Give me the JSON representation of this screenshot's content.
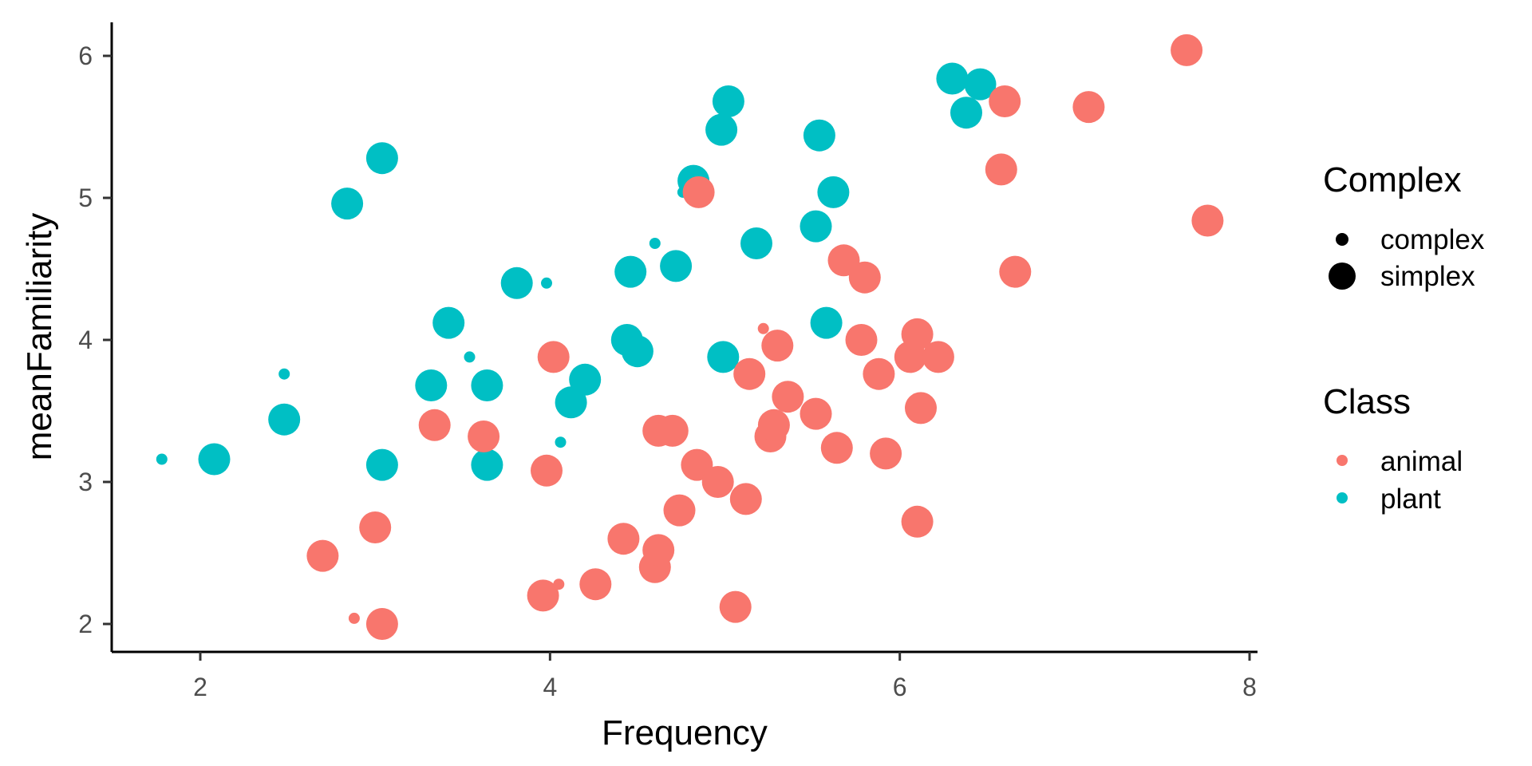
{
  "chart_data": {
    "type": "scatter",
    "xlabel": "Frequency",
    "ylabel": "meanFamiliarity",
    "xlim": [
      1.5,
      8.1
    ],
    "ylim": [
      1.8,
      6.25
    ],
    "x_ticks": [
      "2",
      "4",
      "6",
      "8"
    ],
    "y_ticks": [
      "2",
      "3",
      "4",
      "5",
      "6"
    ],
    "grid": false,
    "legend": {
      "position": "right",
      "size_title": "Complex",
      "size_items": [
        "complex",
        "simplex"
      ],
      "color_title": "Class",
      "color_items": [
        "animal",
        "plant"
      ]
    },
    "colors": {
      "animal": "#F8766D",
      "plant": "#00BFC4"
    },
    "series": [
      {
        "name": "plant",
        "points": [
          {
            "x": 1.78,
            "y": 3.16,
            "size": "complex"
          },
          {
            "x": 2.08,
            "y": 3.16,
            "size": "simplex"
          },
          {
            "x": 2.48,
            "y": 3.76,
            "size": "complex"
          },
          {
            "x": 2.48,
            "y": 3.44,
            "size": "simplex"
          },
          {
            "x": 2.84,
            "y": 4.96,
            "size": "simplex"
          },
          {
            "x": 3.04,
            "y": 5.28,
            "size": "simplex"
          },
          {
            "x": 3.04,
            "y": 3.12,
            "size": "simplex"
          },
          {
            "x": 3.32,
            "y": 3.68,
            "size": "simplex"
          },
          {
            "x": 3.42,
            "y": 4.12,
            "size": "simplex"
          },
          {
            "x": 3.54,
            "y": 3.88,
            "size": "complex"
          },
          {
            "x": 3.64,
            "y": 3.68,
            "size": "simplex"
          },
          {
            "x": 3.64,
            "y": 3.12,
            "size": "simplex"
          },
          {
            "x": 3.81,
            "y": 4.4,
            "size": "simplex"
          },
          {
            "x": 3.98,
            "y": 4.4,
            "size": "complex"
          },
          {
            "x": 4.06,
            "y": 3.28,
            "size": "complex"
          },
          {
            "x": 4.12,
            "y": 3.56,
            "size": "simplex"
          },
          {
            "x": 4.2,
            "y": 3.72,
            "size": "simplex"
          },
          {
            "x": 4.44,
            "y": 4.0,
            "size": "simplex"
          },
          {
            "x": 4.46,
            "y": 4.48,
            "size": "simplex"
          },
          {
            "x": 4.5,
            "y": 3.92,
            "size": "simplex"
          },
          {
            "x": 4.6,
            "y": 4.68,
            "size": "complex"
          },
          {
            "x": 4.72,
            "y": 4.52,
            "size": "simplex"
          },
          {
            "x": 4.76,
            "y": 5.04,
            "size": "complex"
          },
          {
            "x": 4.82,
            "y": 5.12,
            "size": "simplex"
          },
          {
            "x": 4.98,
            "y": 5.48,
            "size": "simplex"
          },
          {
            "x": 4.99,
            "y": 3.88,
            "size": "simplex"
          },
          {
            "x": 5.02,
            "y": 5.68,
            "size": "simplex"
          },
          {
            "x": 5.18,
            "y": 4.68,
            "size": "simplex"
          },
          {
            "x": 5.52,
            "y": 4.8,
            "size": "simplex"
          },
          {
            "x": 5.54,
            "y": 5.44,
            "size": "simplex"
          },
          {
            "x": 5.58,
            "y": 4.12,
            "size": "simplex"
          },
          {
            "x": 5.62,
            "y": 5.04,
            "size": "simplex"
          },
          {
            "x": 6.3,
            "y": 5.84,
            "size": "simplex"
          },
          {
            "x": 6.38,
            "y": 5.6,
            "size": "simplex"
          },
          {
            "x": 6.46,
            "y": 5.8,
            "size": "simplex"
          }
        ]
      },
      {
        "name": "animal",
        "points": [
          {
            "x": 2.7,
            "y": 2.48,
            "size": "simplex"
          },
          {
            "x": 2.88,
            "y": 2.04,
            "size": "complex"
          },
          {
            "x": 3.0,
            "y": 2.68,
            "size": "simplex"
          },
          {
            "x": 3.04,
            "y": 2.0,
            "size": "simplex"
          },
          {
            "x": 3.34,
            "y": 3.4,
            "size": "simplex"
          },
          {
            "x": 3.62,
            "y": 3.32,
            "size": "simplex"
          },
          {
            "x": 3.96,
            "y": 2.2,
            "size": "simplex"
          },
          {
            "x": 3.98,
            "y": 3.08,
            "size": "simplex"
          },
          {
            "x": 4.02,
            "y": 3.88,
            "size": "simplex"
          },
          {
            "x": 4.05,
            "y": 2.28,
            "size": "complex"
          },
          {
            "x": 4.26,
            "y": 2.28,
            "size": "simplex"
          },
          {
            "x": 4.42,
            "y": 2.6,
            "size": "simplex"
          },
          {
            "x": 4.6,
            "y": 2.4,
            "size": "simplex"
          },
          {
            "x": 4.62,
            "y": 2.52,
            "size": "simplex"
          },
          {
            "x": 4.62,
            "y": 3.36,
            "size": "simplex"
          },
          {
            "x": 4.7,
            "y": 3.36,
            "size": "simplex"
          },
          {
            "x": 4.74,
            "y": 2.8,
            "size": "simplex"
          },
          {
            "x": 4.84,
            "y": 3.12,
            "size": "simplex"
          },
          {
            "x": 4.85,
            "y": 5.04,
            "size": "simplex"
          },
          {
            "x": 4.96,
            "y": 3.0,
            "size": "simplex"
          },
          {
            "x": 5.06,
            "y": 2.12,
            "size": "simplex"
          },
          {
            "x": 5.12,
            "y": 2.88,
            "size": "simplex"
          },
          {
            "x": 5.14,
            "y": 3.76,
            "size": "simplex"
          },
          {
            "x": 5.22,
            "y": 4.08,
            "size": "complex"
          },
          {
            "x": 5.26,
            "y": 3.32,
            "size": "simplex"
          },
          {
            "x": 5.28,
            "y": 3.4,
            "size": "simplex"
          },
          {
            "x": 5.3,
            "y": 3.96,
            "size": "simplex"
          },
          {
            "x": 5.36,
            "y": 3.6,
            "size": "simplex"
          },
          {
            "x": 5.52,
            "y": 3.48,
            "size": "simplex"
          },
          {
            "x": 5.64,
            "y": 3.24,
            "size": "simplex"
          },
          {
            "x": 5.68,
            "y": 4.56,
            "size": "simplex"
          },
          {
            "x": 5.78,
            "y": 4.0,
            "size": "simplex"
          },
          {
            "x": 5.8,
            "y": 4.44,
            "size": "simplex"
          },
          {
            "x": 5.88,
            "y": 3.76,
            "size": "simplex"
          },
          {
            "x": 5.92,
            "y": 3.2,
            "size": "simplex"
          },
          {
            "x": 6.06,
            "y": 3.88,
            "size": "simplex"
          },
          {
            "x": 6.1,
            "y": 4.04,
            "size": "simplex"
          },
          {
            "x": 6.1,
            "y": 2.72,
            "size": "simplex"
          },
          {
            "x": 6.12,
            "y": 3.52,
            "size": "simplex"
          },
          {
            "x": 6.22,
            "y": 3.88,
            "size": "simplex"
          },
          {
            "x": 6.58,
            "y": 5.2,
            "size": "simplex"
          },
          {
            "x": 6.6,
            "y": 5.68,
            "size": "simplex"
          },
          {
            "x": 6.66,
            "y": 4.48,
            "size": "simplex"
          },
          {
            "x": 7.08,
            "y": 5.64,
            "size": "simplex"
          },
          {
            "x": 7.64,
            "y": 6.04,
            "size": "simplex"
          },
          {
            "x": 7.76,
            "y": 4.84,
            "size": "simplex"
          }
        ]
      }
    ]
  }
}
